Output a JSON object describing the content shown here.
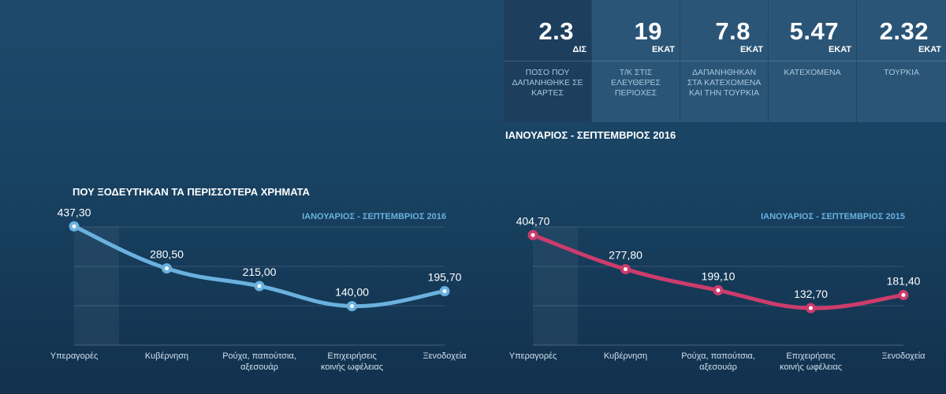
{
  "stats": [
    {
      "value": "2.3",
      "unit": "ΔΙΣ",
      "label": "ΠΟΣΟ ΠΟΥ ΔΑΠΑΝΗΘΗΚΕ ΣΕ ΚΑΡΤΕΣ"
    },
    {
      "value": "19",
      "unit": "ΕΚΑΤ",
      "label": "Τ/Κ ΣΤΙΣ ΕΛΕΥΘΕΡΕΣ ΠΕΡΙΟΧΕΣ"
    },
    {
      "value": "7.8",
      "unit": "ΕΚΑΤ",
      "label": "ΔΑΠΑΝΗΘΗΚΑΝ ΣΤΑ ΚΑΤΕΧΟΜΕΝΑ ΚΑΙ ΤΗΝ ΤΟΥΡΚΙΑ"
    },
    {
      "value": "5.47",
      "unit": "ΕΚΑΤ",
      "label": "ΚΑΤΕΧΟΜΕΝΑ"
    },
    {
      "value": "2.32",
      "unit": "ΕΚΑΤ",
      "label": "ΤΟΥΡΚΙΑ"
    }
  ],
  "stats_period": "ΙΑΝΟΥΑΡΙΟΣ - ΣΕΠΤΕΜΒΡΙΟΣ 2016",
  "section_title": "ΠΟΥ ΞΟΔΕΥΤΗΚΑΝ ΤΑ ΠΕΡΙΣΣΟΤΕΡΑ ΧΡΗΜΑΤΑ",
  "colors": {
    "series_2016": "#6ab1df",
    "series_2015": "#cc3c6c",
    "subtitle": "#6ab1df"
  },
  "chart_data": [
    {
      "type": "line",
      "title": "ΙΑΝΟΥΑΡΙΟΣ - ΣΕΠΤΕΜΒΡΙΟΣ 2016",
      "categories": [
        "Υπεραγορές",
        "Κυβέρνηση",
        "Ρούχα, παπούτσια, αξεσουάρ",
        "Επιχειρήσεις κοινής ωφέλειας",
        "Ξενοδοχεία"
      ],
      "values": [
        437.3,
        280.5,
        215.0,
        140.0,
        195.7
      ],
      "data_labels": [
        "437,30",
        "280,50",
        "215,00",
        "140,00",
        "195,70"
      ],
      "color": "#6ab1df",
      "ylim": [
        0,
        500
      ],
      "grid": true
    },
    {
      "type": "line",
      "title": "ΙΑΝΟΥΑΡΙΟΣ - ΣΕΠΤΕΜΒΡΙΟΣ 2015",
      "categories": [
        "Υπεραγορές",
        "Κυβέρνηση",
        "Ρούχα, παπούτσια, αξεσουάρ",
        "Επιχειρήσεις κοινής ωφέλειας",
        "Ξενοδοχεία"
      ],
      "values": [
        404.7,
        277.8,
        199.1,
        132.7,
        181.4
      ],
      "data_labels": [
        "404,70",
        "277,80",
        "199,10",
        "132,70",
        "181,40"
      ],
      "color": "#cc3c6c",
      "ylim": [
        0,
        500
      ],
      "grid": true
    }
  ]
}
